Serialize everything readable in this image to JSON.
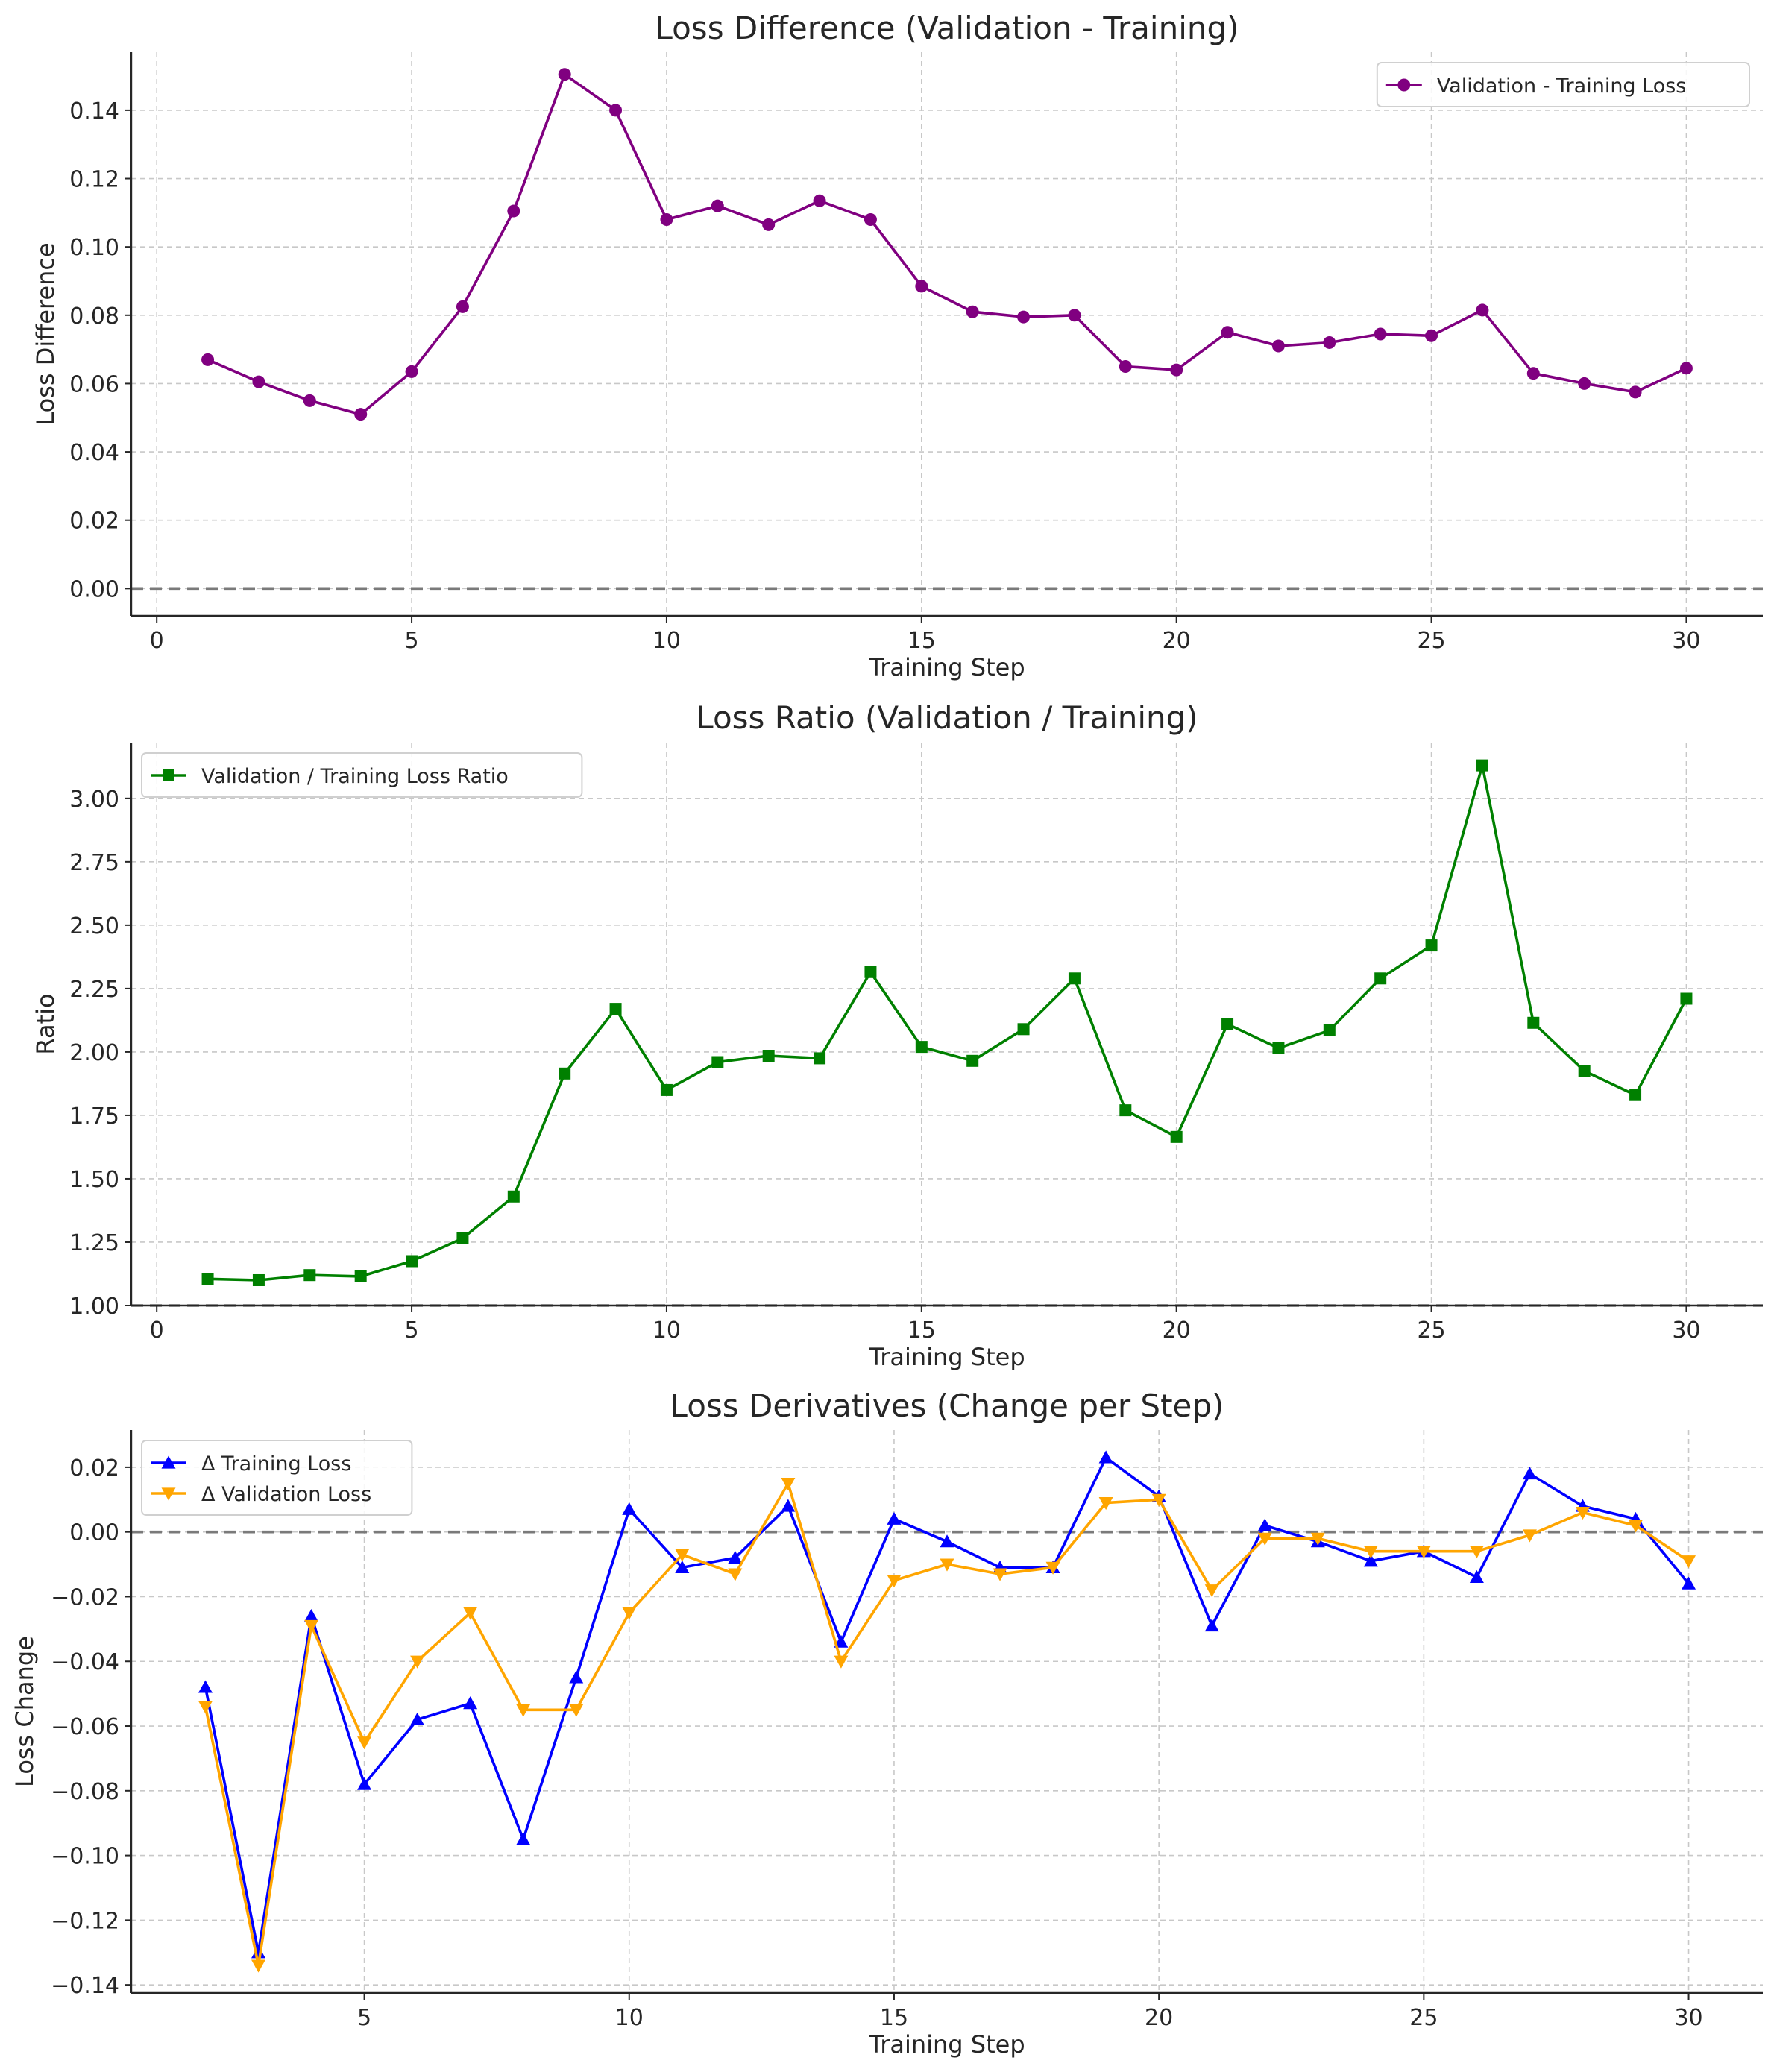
{
  "chart_data": [
    {
      "type": "line",
      "title": "Loss Difference (Validation - Training)",
      "xlabel": "Training Step",
      "ylabel": "Loss Difference",
      "xlim": [
        -0.5,
        31.5
      ],
      "ylim": [
        -0.008,
        0.157
      ],
      "xticks": [
        0,
        5,
        10,
        15,
        20,
        25,
        30
      ],
      "xtick_labels": [
        "0",
        "5",
        "10",
        "15",
        "20",
        "25",
        "30"
      ],
      "yticks": [
        0.0,
        0.02,
        0.04,
        0.06,
        0.08,
        0.1,
        0.12,
        0.14
      ],
      "ytick_labels": [
        "0.00",
        "0.02",
        "0.04",
        "0.06",
        "0.08",
        "0.10",
        "0.12",
        "0.14"
      ],
      "grid": true,
      "reference_line": 0,
      "legend_position": "upper-right",
      "x": [
        1,
        2,
        3,
        4,
        5,
        6,
        7,
        8,
        9,
        10,
        11,
        12,
        13,
        14,
        15,
        16,
        17,
        18,
        19,
        20,
        21,
        22,
        23,
        24,
        25,
        26,
        27,
        28,
        29,
        30
      ],
      "series": [
        {
          "name": "Validation - Training Loss",
          "color": "#800080",
          "marker": "circle",
          "values": [
            0.067,
            0.0605,
            0.055,
            0.051,
            0.0635,
            0.0825,
            0.1105,
            0.1505,
            0.14,
            0.108,
            0.112,
            0.1065,
            0.1135,
            0.108,
            0.0885,
            0.081,
            0.0795,
            0.08,
            0.065,
            0.064,
            0.075,
            0.071,
            0.072,
            0.0745,
            0.074,
            0.0815,
            0.063,
            0.06,
            0.0575,
            0.0645
          ]
        }
      ]
    },
    {
      "type": "line",
      "title": "Loss Ratio (Validation / Training)",
      "xlabel": "Training Step",
      "ylabel": "Ratio",
      "xlim": [
        -0.5,
        31.5
      ],
      "ylim": [
        1.0,
        3.22
      ],
      "xticks": [
        0,
        5,
        10,
        15,
        20,
        25,
        30
      ],
      "xtick_labels": [
        "0",
        "5",
        "10",
        "15",
        "20",
        "25",
        "30"
      ],
      "yticks": [
        1.0,
        1.25,
        1.5,
        1.75,
        2.0,
        2.25,
        2.5,
        2.75,
        3.0
      ],
      "ytick_labels": [
        "1.00",
        "1.25",
        "1.50",
        "1.75",
        "2.00",
        "2.25",
        "2.50",
        "2.75",
        "3.00"
      ],
      "grid": true,
      "reference_line": 1.0,
      "legend_position": "upper-left",
      "x": [
        1,
        2,
        3,
        4,
        5,
        6,
        7,
        8,
        9,
        10,
        11,
        12,
        13,
        14,
        15,
        16,
        17,
        18,
        19,
        20,
        21,
        22,
        23,
        24,
        25,
        26,
        27,
        28,
        29,
        30
      ],
      "series": [
        {
          "name": "Validation / Training Loss Ratio",
          "color": "#008000",
          "marker": "square",
          "values": [
            1.105,
            1.1,
            1.12,
            1.115,
            1.175,
            1.265,
            1.43,
            1.915,
            2.17,
            1.85,
            1.96,
            1.985,
            1.975,
            2.315,
            2.02,
            1.965,
            2.09,
            2.29,
            1.77,
            1.665,
            2.11,
            2.015,
            2.085,
            2.29,
            2.42,
            3.13,
            2.115,
            1.925,
            1.83,
            2.21
          ]
        }
      ]
    },
    {
      "type": "line",
      "title": "Loss Derivatives (Change per Step)",
      "xlabel": "Training Step",
      "ylabel": "Loss Change",
      "xlim": [
        0.6,
        31.4
      ],
      "ylim": [
        -0.1425,
        0.0315
      ],
      "xticks": [
        5,
        10,
        15,
        20,
        25,
        30
      ],
      "xtick_labels": [
        "5",
        "10",
        "15",
        "20",
        "25",
        "30"
      ],
      "yticks": [
        -0.14,
        -0.12,
        -0.1,
        -0.08,
        -0.06,
        -0.04,
        -0.02,
        0.0,
        0.02
      ],
      "ytick_labels": [
        "−0.14",
        "−0.12",
        "−0.10",
        "−0.08",
        "−0.06",
        "−0.04",
        "−0.02",
        "0.00",
        "0.02"
      ],
      "grid": true,
      "reference_line": 0,
      "legend_position": "upper-left",
      "x": [
        2,
        3,
        4,
        5,
        6,
        7,
        8,
        9,
        10,
        11,
        12,
        13,
        14,
        15,
        16,
        17,
        18,
        19,
        20,
        21,
        22,
        23,
        24,
        25,
        26,
        27,
        28,
        29,
        30
      ],
      "series": [
        {
          "name": "Δ Training Loss",
          "color": "#0000ff",
          "marker": "triangle-up",
          "values": [
            -0.048,
            -0.13,
            -0.026,
            -0.078,
            -0.058,
            -0.053,
            -0.095,
            -0.045,
            0.007,
            -0.011,
            -0.008,
            0.008,
            -0.034,
            0.004,
            -0.003,
            -0.011,
            -0.011,
            0.023,
            0.011,
            -0.029,
            0.002,
            -0.003,
            -0.009,
            -0.006,
            -0.014,
            0.018,
            0.008,
            0.004,
            -0.016
          ]
        },
        {
          "name": "Δ Validation Loss",
          "color": "#ffa500",
          "marker": "triangle-down",
          "values": [
            -0.054,
            -0.134,
            -0.029,
            -0.065,
            -0.04,
            -0.025,
            -0.055,
            -0.055,
            -0.025,
            -0.007,
            -0.013,
            0.015,
            -0.04,
            -0.015,
            -0.01,
            -0.013,
            -0.011,
            0.009,
            0.01,
            -0.018,
            -0.002,
            -0.002,
            -0.006,
            -0.006,
            -0.006,
            -0.001,
            0.006,
            0.002,
            -0.009
          ]
        }
      ]
    }
  ]
}
